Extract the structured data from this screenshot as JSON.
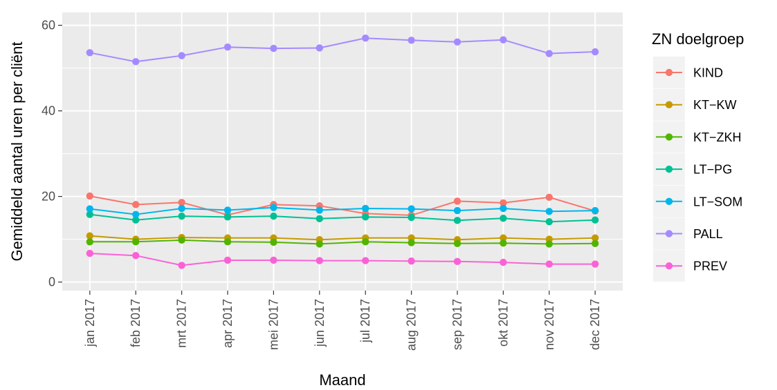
{
  "chart_data": {
    "type": "line",
    "title": "",
    "xlabel": "Maand",
    "ylabel": "Gemiddeld aantal uren per cliënt",
    "ylim": [
      -2,
      63
    ],
    "yticks": [
      0,
      20,
      40,
      60
    ],
    "grid": true,
    "legend_position": "right",
    "legend_title": "ZN doelgroep",
    "categories": [
      "jan 2017",
      "feb 2017",
      "mrt 2017",
      "apr 2017",
      "mei 2017",
      "jun 2017",
      "jul 2017",
      "aug 2017",
      "sep 2017",
      "okt 2017",
      "nov 2017",
      "dec 2017"
    ],
    "series": [
      {
        "name": "KIND",
        "color": "#F8766D",
        "values": [
          20.1,
          18.1,
          18.6,
          15.7,
          18.1,
          17.8,
          16.0,
          15.6,
          18.9,
          18.5,
          19.8,
          16.6
        ]
      },
      {
        "name": "KT−KW",
        "color": "#C49A00",
        "values": [
          10.8,
          10.0,
          10.4,
          10.3,
          10.3,
          9.9,
          10.3,
          10.3,
          9.9,
          10.3,
          10.0,
          10.3
        ]
      },
      {
        "name": "KT−ZKH",
        "color": "#53B400",
        "values": [
          9.4,
          9.4,
          9.8,
          9.4,
          9.3,
          8.9,
          9.4,
          9.2,
          9.0,
          9.1,
          8.9,
          9.0
        ]
      },
      {
        "name": "LT−PG",
        "color": "#00C094",
        "values": [
          15.8,
          14.5,
          15.4,
          15.2,
          15.4,
          14.8,
          15.2,
          15.1,
          14.4,
          14.9,
          14.1,
          14.5
        ]
      },
      {
        "name": "LT−SOM",
        "color": "#00B6EB",
        "values": [
          17.1,
          15.8,
          17.2,
          16.8,
          17.4,
          16.8,
          17.2,
          17.1,
          16.7,
          17.2,
          16.5,
          16.7
        ]
      },
      {
        "name": "PALL",
        "color": "#A58AFF",
        "values": [
          53.6,
          51.5,
          52.9,
          54.9,
          54.6,
          54.7,
          57.0,
          56.5,
          56.1,
          56.6,
          53.4,
          53.8
        ]
      },
      {
        "name": "PREV",
        "color": "#FB61D7",
        "values": [
          6.7,
          6.2,
          3.9,
          5.1,
          5.1,
          5.0,
          5.0,
          4.9,
          4.8,
          4.6,
          4.2,
          4.2
        ]
      }
    ]
  }
}
